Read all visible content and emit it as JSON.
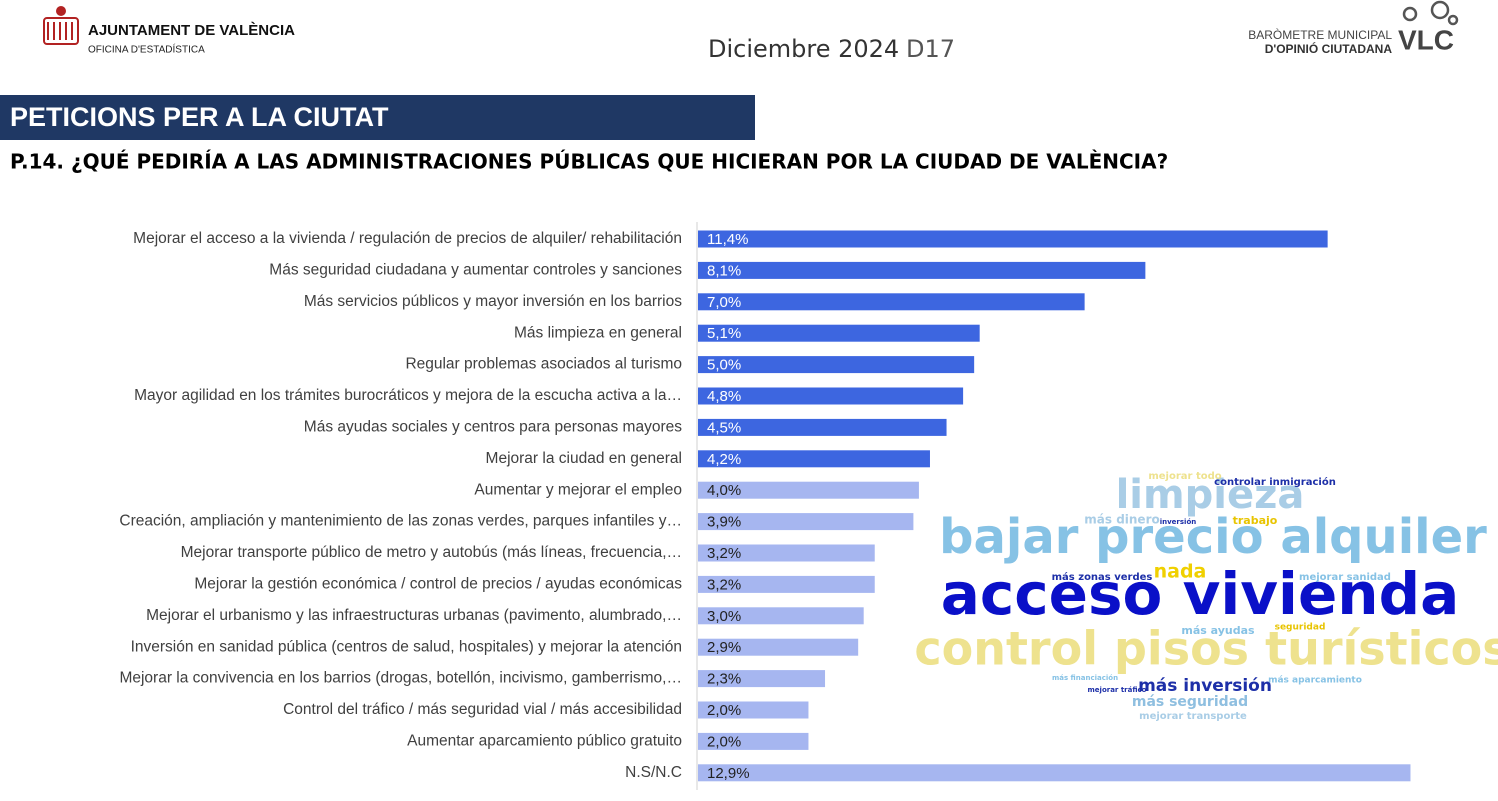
{
  "header": {
    "org": "AJUNTAMENT DE VALÈNCIA",
    "office": "OFICINA D'ESTADÍSTICA",
    "date": "Diciembre 2024",
    "code": "D17",
    "brand_line1": "BARÒMETRE MUNICIPAL",
    "brand_line2": "D'OPINIÓ CIUTADANA",
    "brand_mark": "VLC"
  },
  "section": "PETICIONS PER A LA CIUTAT",
  "question": "P.14. ¿QUÉ PEDIRÍA A LAS ADMINISTRACIONES PÚBLICAS QUE HICIERAN POR LA CIUDAD DE VALÈNCIA?",
  "chart_data": {
    "type": "hbar",
    "categories": [
      "Mejorar el acceso a la vivienda / regulación de precios de alquiler/ rehabilitación",
      "Más seguridad ciudadana y aumentar controles y sanciones",
      "Más servicios públicos y mayor inversión en los barrios",
      "Más limpieza en general",
      "Regular problemas asociados al turismo",
      "Mayor agilidad en los trámites burocráticos y mejora de la escucha activa a la…",
      "Más ayudas sociales y centros para personas mayores",
      "Mejorar la ciudad en general",
      "Aumentar y mejorar el empleo",
      "Creación, ampliación y mantenimiento de las zonas verdes, parques infantiles y…",
      "Mejorar transporte público de metro y autobús (más líneas, frecuencia,…",
      "Mejorar la gestión económica / control de precios / ayudas económicas",
      "Mejorar el urbanismo y las infraestructuras urbanas (pavimento, alumbrado,…",
      "Inversión en sanidad pública (centros de salud, hospitales) y mejorar la atención",
      "Mejorar la convivencia en los barrios (drogas, botellón, incivismo, gamberrismo,…",
      "Control del tráfico / más seguridad vial / más accesibilidad",
      "Aumentar aparcamiento público gratuito",
      "N.S/N.C"
    ],
    "values": [
      11.4,
      8.1,
      7.0,
      5.1,
      5.0,
      4.8,
      4.5,
      4.2,
      4.0,
      3.9,
      3.2,
      3.2,
      3.0,
      2.9,
      2.3,
      2.0,
      2.0,
      12.9
    ],
    "value_labels": [
      "11,4%",
      "8,1%",
      "7,0%",
      "5,1%",
      "5,0%",
      "4,8%",
      "4,5%",
      "4,2%",
      "4,0%",
      "3,9%",
      "3,2%",
      "3,2%",
      "3,0%",
      "2,9%",
      "2,3%",
      "2,0%",
      "2,0%",
      "12,9%"
    ],
    "colors": [
      "#3d66e0",
      "#3d66e0",
      "#3d66e0",
      "#3d66e0",
      "#3d66e0",
      "#3d66e0",
      "#3d66e0",
      "#3d66e0",
      "#a6b6f0",
      "#a6b6f0",
      "#a6b6f0",
      "#a6b6f0",
      "#a6b6f0",
      "#a6b6f0",
      "#a6b6f0",
      "#a6b6f0",
      "#a6b6f0",
      "#a6b6f0"
    ],
    "xlim": [
      0,
      13
    ]
  },
  "word_cloud": [
    "limpieza",
    "bajar precio alquiler",
    "acceso vivienda",
    "control pisos turísticos",
    "más inversión",
    "nada",
    "más seguridad",
    "controlar inmigración",
    "más dinero",
    "trabajo",
    "mejorar todo",
    "más zonas verdes",
    "mejorar sanidad",
    "más ayudas",
    "seguridad",
    "mejorar transporte",
    "más aparcamiento",
    "mejorar tráfico",
    "inversión",
    "más financiación"
  ]
}
